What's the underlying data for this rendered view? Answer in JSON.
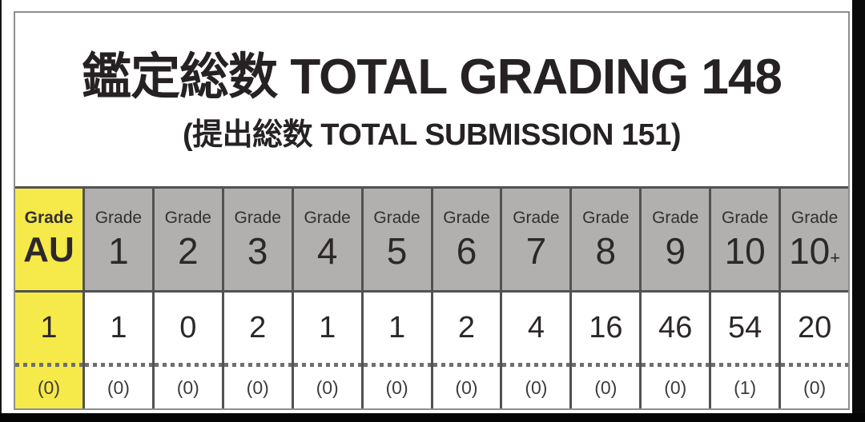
{
  "colors": {
    "highlight_yellow": "#f6e94a",
    "header_gray": "#b1b0ae",
    "cell_border": "#525254",
    "outer_border": "#8d8d8d",
    "text_dark": "#262223",
    "photo_edge_black": "#0a0a0a"
  },
  "header": {
    "title": "鑑定総数 TOTAL GRADING 148",
    "subtitle": "(提出総数 TOTAL SUBMISSION 151)"
  },
  "table": {
    "grade_word": "Grade",
    "columns": [
      {
        "grade": "AU",
        "count": "1",
        "sub": "(0)"
      },
      {
        "grade": "1",
        "count": "1",
        "sub": "(0)"
      },
      {
        "grade": "2",
        "count": "0",
        "sub": "(0)"
      },
      {
        "grade": "3",
        "count": "2",
        "sub": "(0)"
      },
      {
        "grade": "4",
        "count": "1",
        "sub": "(0)"
      },
      {
        "grade": "5",
        "count": "1",
        "sub": "(0)"
      },
      {
        "grade": "6",
        "count": "2",
        "sub": "(0)"
      },
      {
        "grade": "7",
        "count": "4",
        "sub": "(0)"
      },
      {
        "grade": "8",
        "count": "16",
        "sub": "(0)"
      },
      {
        "grade": "9",
        "count": "46",
        "sub": "(0)"
      },
      {
        "grade": "10",
        "count": "54",
        "sub": "(1)"
      },
      {
        "grade": "10",
        "suffix": "+",
        "count": "20",
        "sub": "(0)"
      }
    ]
  },
  "chart_data": {
    "type": "table",
    "title": "鑑定総数 TOTAL GRADING 148",
    "subtitle": "(提出総数 TOTAL SUBMISSION 151)",
    "total_grading": 148,
    "total_submission": 151,
    "columns": [
      "Grade AU",
      "Grade 1",
      "Grade 2",
      "Grade 3",
      "Grade 4",
      "Grade 5",
      "Grade 6",
      "Grade 7",
      "Grade 8",
      "Grade 9",
      "Grade 10",
      "Grade 10+"
    ],
    "rows": [
      {
        "name": "count",
        "values": [
          1,
          1,
          0,
          2,
          1,
          1,
          2,
          4,
          16,
          46,
          54,
          20
        ]
      },
      {
        "name": "secondary_count_parenthesized",
        "values": [
          0,
          0,
          0,
          0,
          0,
          0,
          0,
          0,
          0,
          0,
          1,
          0
        ]
      }
    ],
    "highlighted_column": "Grade AU",
    "layout": {
      "header_fill": "gray",
      "highlight_fill": "yellow",
      "divider_between_rows": "dotted"
    }
  }
}
